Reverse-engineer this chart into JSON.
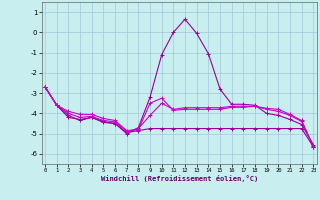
{
  "xlabel": "Windchill (Refroidissement éolien,°C)",
  "bg_color": "#c8eef0",
  "grid_color": "#a0c8d8",
  "line_color": "#990099",
  "line_color2": "#cc00cc",
  "xmin": 0,
  "xmax": 23,
  "ymin": -6.5,
  "ymax": 1.5,
  "yticks": [
    1,
    0,
    -1,
    -2,
    -3,
    -4,
    -5,
    -6
  ],
  "xticks": [
    0,
    1,
    2,
    3,
    4,
    5,
    6,
    7,
    8,
    9,
    10,
    11,
    12,
    13,
    14,
    15,
    16,
    17,
    18,
    19,
    20,
    21,
    22,
    23
  ],
  "line1_x": [
    0,
    1,
    2,
    3,
    4,
    5,
    6,
    7,
    8,
    9,
    10,
    11,
    12,
    13,
    14,
    15,
    16,
    17,
    18,
    19,
    20,
    21,
    22,
    23
  ],
  "line1_y": [
    -2.7,
    -3.6,
    -4.2,
    -4.3,
    -4.2,
    -4.4,
    -4.5,
    -5.0,
    -4.7,
    -3.2,
    -1.1,
    0.0,
    0.65,
    -0.05,
    -1.05,
    -2.8,
    -3.55,
    -3.55,
    -3.6,
    -4.0,
    -4.1,
    -4.3,
    -4.55,
    -5.55
  ],
  "line2_x": [
    0,
    1,
    2,
    3,
    4,
    5,
    6,
    7,
    8,
    9,
    10,
    11,
    12,
    13,
    14,
    15,
    16,
    17,
    18,
    19,
    20,
    21,
    22,
    23
  ],
  "line2_y": [
    -2.7,
    -3.6,
    -3.9,
    -4.05,
    -4.05,
    -4.25,
    -4.35,
    -4.85,
    -4.8,
    -3.5,
    -3.25,
    -3.85,
    -3.8,
    -3.8,
    -3.8,
    -3.8,
    -3.7,
    -3.7,
    -3.65,
    -3.75,
    -3.8,
    -4.05,
    -4.35,
    -5.65
  ],
  "line3_x": [
    0,
    1,
    2,
    3,
    4,
    5,
    6,
    7,
    8,
    9,
    10,
    11,
    12,
    13,
    14,
    15,
    16,
    17,
    18,
    19,
    20,
    21,
    22,
    23
  ],
  "line3_y": [
    -2.7,
    -3.6,
    -4.1,
    -4.35,
    -4.2,
    -4.45,
    -4.5,
    -4.95,
    -4.85,
    -4.75,
    -4.75,
    -4.75,
    -4.75,
    -4.75,
    -4.75,
    -4.75,
    -4.75,
    -4.75,
    -4.75,
    -4.75,
    -4.75,
    -4.75,
    -4.75,
    -5.65
  ],
  "line4_x": [
    0,
    1,
    2,
    3,
    4,
    5,
    6,
    7,
    8,
    9,
    10,
    11,
    12,
    13,
    14,
    15,
    16,
    17,
    18,
    19,
    20,
    21,
    22,
    23
  ],
  "line4_y": [
    -2.7,
    -3.6,
    -4.0,
    -4.2,
    -4.15,
    -4.35,
    -4.42,
    -4.9,
    -4.75,
    -4.1,
    -3.5,
    -3.8,
    -3.72,
    -3.72,
    -3.72,
    -3.72,
    -3.65,
    -3.65,
    -3.65,
    -3.8,
    -3.9,
    -4.1,
    -4.4,
    -5.6
  ]
}
